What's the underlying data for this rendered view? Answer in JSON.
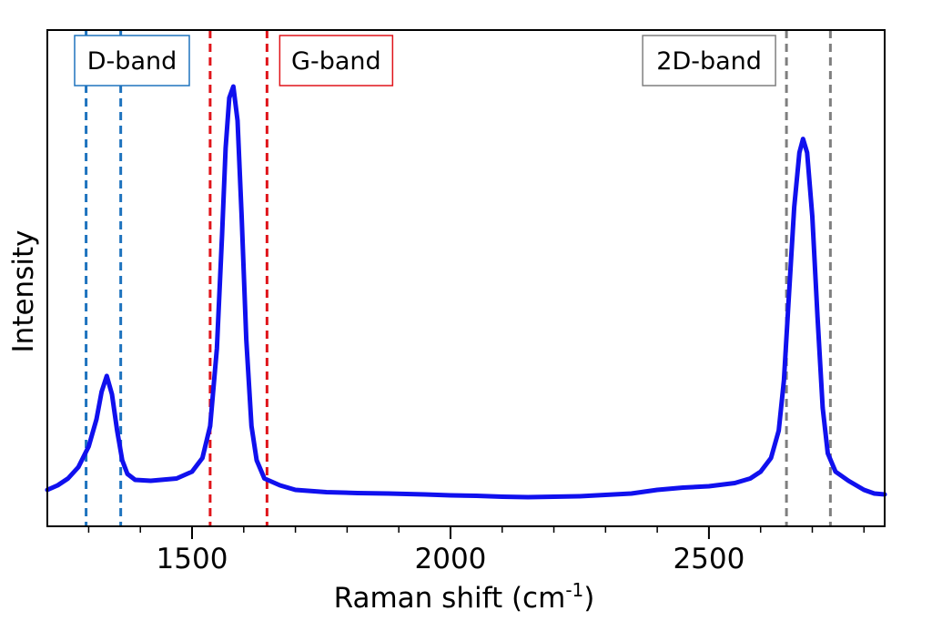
{
  "chart_data": {
    "type": "line",
    "xlabel": "Raman shift (cm",
    "xlabel_sup": "-1",
    "xlabel_end": ")",
    "ylabel": "Intensity",
    "xlim": [
      1220,
      2840
    ],
    "ylim": [
      0,
      1
    ],
    "x_ticks_major": [
      1500,
      2000,
      2500
    ],
    "x_ticks_minor": [
      1300,
      1400,
      1600,
      1700,
      1800,
      1900,
      2100,
      2200,
      2300,
      2400,
      2600,
      2700,
      2800
    ],
    "grid": false,
    "line_color": "#1010ee",
    "series": [
      {
        "x": [
          1220,
          1240,
          1260,
          1280,
          1300,
          1315,
          1325,
          1335,
          1345,
          1355,
          1365,
          1375,
          1390,
          1420,
          1470,
          1500,
          1520,
          1535,
          1548,
          1558,
          1565,
          1572,
          1580,
          1588,
          1596,
          1605,
          1615,
          1625,
          1640,
          1670,
          1700,
          1760,
          1820,
          1880,
          1950,
          2000,
          2050,
          2100,
          2150,
          2200,
          2250,
          2300,
          2350,
          2400,
          2450,
          2500,
          2550,
          2580,
          2600,
          2620,
          2635,
          2645,
          2655,
          2665,
          2675,
          2682,
          2690,
          2700,
          2710,
          2720,
          2730,
          2745,
          2770,
          2800,
          2820,
          2840
        ],
        "y": [
          0.02,
          0.03,
          0.045,
          0.07,
          0.115,
          0.175,
          0.235,
          0.27,
          0.23,
          0.15,
          0.085,
          0.055,
          0.042,
          0.04,
          0.045,
          0.06,
          0.09,
          0.16,
          0.33,
          0.58,
          0.77,
          0.88,
          0.905,
          0.83,
          0.62,
          0.35,
          0.16,
          0.085,
          0.045,
          0.03,
          0.02,
          0.015,
          0.013,
          0.012,
          0.01,
          0.008,
          0.007,
          0.005,
          0.004,
          0.005,
          0.006,
          0.009,
          0.012,
          0.02,
          0.025,
          0.028,
          0.035,
          0.045,
          0.06,
          0.09,
          0.15,
          0.26,
          0.45,
          0.64,
          0.76,
          0.79,
          0.76,
          0.62,
          0.4,
          0.2,
          0.1,
          0.06,
          0.04,
          0.02,
          0.012,
          0.01
        ]
      }
    ],
    "annotations": [
      {
        "label": "D-band",
        "lines_x": [
          1295,
          1362
        ],
        "color": "#1e73be"
      },
      {
        "label": "G-band",
        "lines_x": [
          1535,
          1645
        ],
        "color": "#e0141a"
      },
      {
        "label": "2D-band",
        "lines_x": [
          2650,
          2735
        ],
        "color": "#7f7f7f"
      }
    ]
  }
}
